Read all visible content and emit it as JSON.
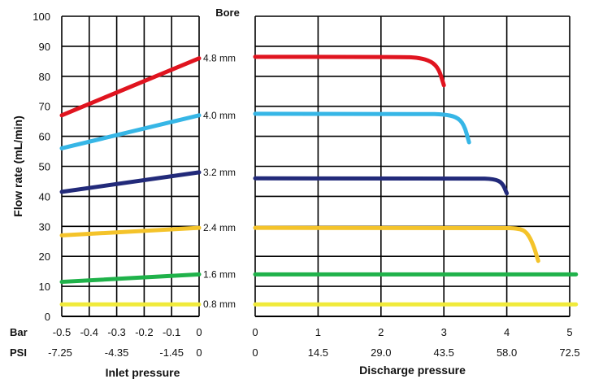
{
  "chart_data": {
    "type": "line",
    "ylabel": "Flow rate (mL/min)",
    "ylim": [
      0,
      100
    ],
    "yticks": [
      "0",
      "10",
      "20",
      "30",
      "40",
      "50",
      "60",
      "70",
      "80",
      "90",
      "100"
    ],
    "bore_header": "Bore",
    "series_colors": [
      "#e0141f",
      "#36b6e6",
      "#222a7a",
      "#f4c32a",
      "#1fb24a",
      "#f0ea3a"
    ],
    "inlet": {
      "xlabel": "Inlet pressure",
      "xlim": [
        -0.5,
        0
      ],
      "bar_row_label": "Bar",
      "psi_row_label": "PSI",
      "bar_ticks": [
        {
          "v": -0.5,
          "label": "-0.5"
        },
        {
          "v": -0.4,
          "label": "-0.4"
        },
        {
          "v": -0.3,
          "label": "-0.3"
        },
        {
          "v": -0.2,
          "label": "-0.2"
        },
        {
          "v": -0.1,
          "label": "-0.1"
        },
        {
          "v": 0,
          "label": "0"
        }
      ],
      "psi_ticks": [
        {
          "v": -0.5,
          "label": "-7.25"
        },
        {
          "v": -0.3,
          "label": "-4.35"
        },
        {
          "v": -0.1,
          "label": "-1.45"
        },
        {
          "v": 0,
          "label": "0"
        }
      ],
      "series": [
        {
          "name": "4.8 mm",
          "x": [
            -0.5,
            0
          ],
          "y": [
            67,
            86
          ]
        },
        {
          "name": "4.0 mm",
          "x": [
            -0.5,
            0
          ],
          "y": [
            56,
            67
          ]
        },
        {
          "name": "3.2 mm",
          "x": [
            -0.5,
            0
          ],
          "y": [
            41.5,
            48
          ]
        },
        {
          "name": "2.4 mm",
          "x": [
            -0.5,
            0
          ],
          "y": [
            27,
            29.5
          ]
        },
        {
          "name": "1.6 mm",
          "x": [
            -0.5,
            0
          ],
          "y": [
            11.5,
            14
          ]
        },
        {
          "name": "0.8 mm",
          "x": [
            -0.5,
            0
          ],
          "y": [
            4,
            4
          ]
        }
      ]
    },
    "discharge": {
      "xlabel": "Discharge pressure",
      "xlim": [
        0,
        5
      ],
      "bar_ticks": [
        {
          "v": 0,
          "label": "0"
        },
        {
          "v": 1,
          "label": "1"
        },
        {
          "v": 2,
          "label": "2"
        },
        {
          "v": 3,
          "label": "3"
        },
        {
          "v": 4,
          "label": "4"
        },
        {
          "v": 5,
          "label": "5"
        }
      ],
      "psi_ticks": [
        {
          "v": 0,
          "label": "0"
        },
        {
          "v": 1,
          "label": "14.5"
        },
        {
          "v": 2,
          "label": "29.0"
        },
        {
          "v": 3,
          "label": "43.5"
        },
        {
          "v": 4,
          "label": "58.0"
        },
        {
          "v": 5,
          "label": "72.5"
        }
      ],
      "series": [
        {
          "name": "4.8 mm",
          "x": [
            0,
            2.3,
            2.6,
            2.8,
            2.92,
            3.0
          ],
          "y": [
            86.5,
            86.5,
            86.2,
            85,
            82.5,
            77
          ]
        },
        {
          "name": "4.0 mm",
          "x": [
            0,
            2.7,
            3.0,
            3.2,
            3.32,
            3.4
          ],
          "y": [
            67.5,
            67.5,
            67.3,
            66.5,
            64,
            58
          ]
        },
        {
          "name": "3.2 mm",
          "x": [
            0,
            3.5,
            3.8,
            3.93,
            4.0
          ],
          "y": [
            46,
            46,
            45.8,
            44.5,
            41
          ]
        },
        {
          "name": "2.4 mm",
          "x": [
            0,
            3.9,
            4.2,
            4.32,
            4.42,
            4.5
          ],
          "y": [
            29.5,
            29.5,
            29.3,
            28,
            24,
            18.5
          ]
        },
        {
          "name": "1.6 mm",
          "x": [
            0,
            5.1
          ],
          "y": [
            14,
            14
          ]
        },
        {
          "name": "0.8 mm",
          "x": [
            0,
            5.1
          ],
          "y": [
            4,
            4
          ]
        }
      ]
    }
  }
}
